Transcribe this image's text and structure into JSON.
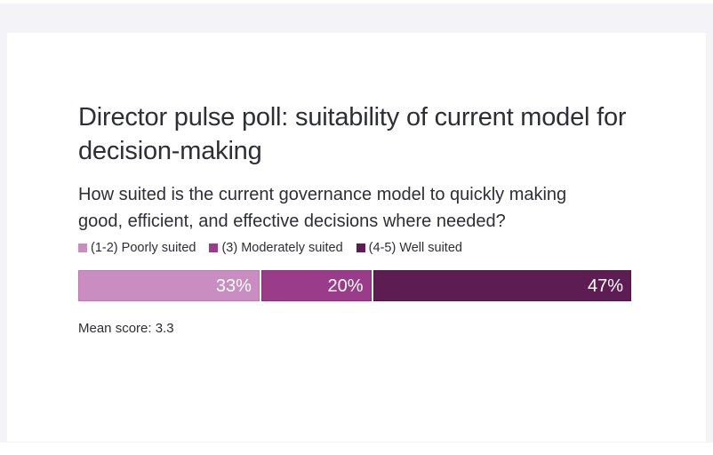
{
  "page": {
    "background_color": "#f4f4f8",
    "card_background_color": "#ffffff",
    "text_color": "#2e2e38"
  },
  "chart_data": {
    "type": "bar",
    "subtype": "horizontal-stacked-single-row",
    "title": "Director pulse poll: suitability of current model for decision-making",
    "subtitle": "How suited is the current governance model to quickly making good, efficient, and effective decisions where needed?",
    "categories": [
      "(1-2) Poorly suited",
      "(3) Moderately suited",
      "(4-5) Well suited"
    ],
    "values": [
      33,
      20,
      47
    ],
    "value_labels": [
      "33%",
      "20%",
      "47%"
    ],
    "unit": "%",
    "colors": [
      "#c98dc1",
      "#9a3c89",
      "#5e1d52"
    ],
    "border_colors": [
      "#b77bae",
      "#87307a",
      "#4d1644"
    ],
    "value_label_color": "#ffffff",
    "legend_position": "top",
    "xlim": [
      0,
      100
    ],
    "grid": false,
    "annotation": "Mean score: 3.3",
    "mean_score": 3.3
  }
}
